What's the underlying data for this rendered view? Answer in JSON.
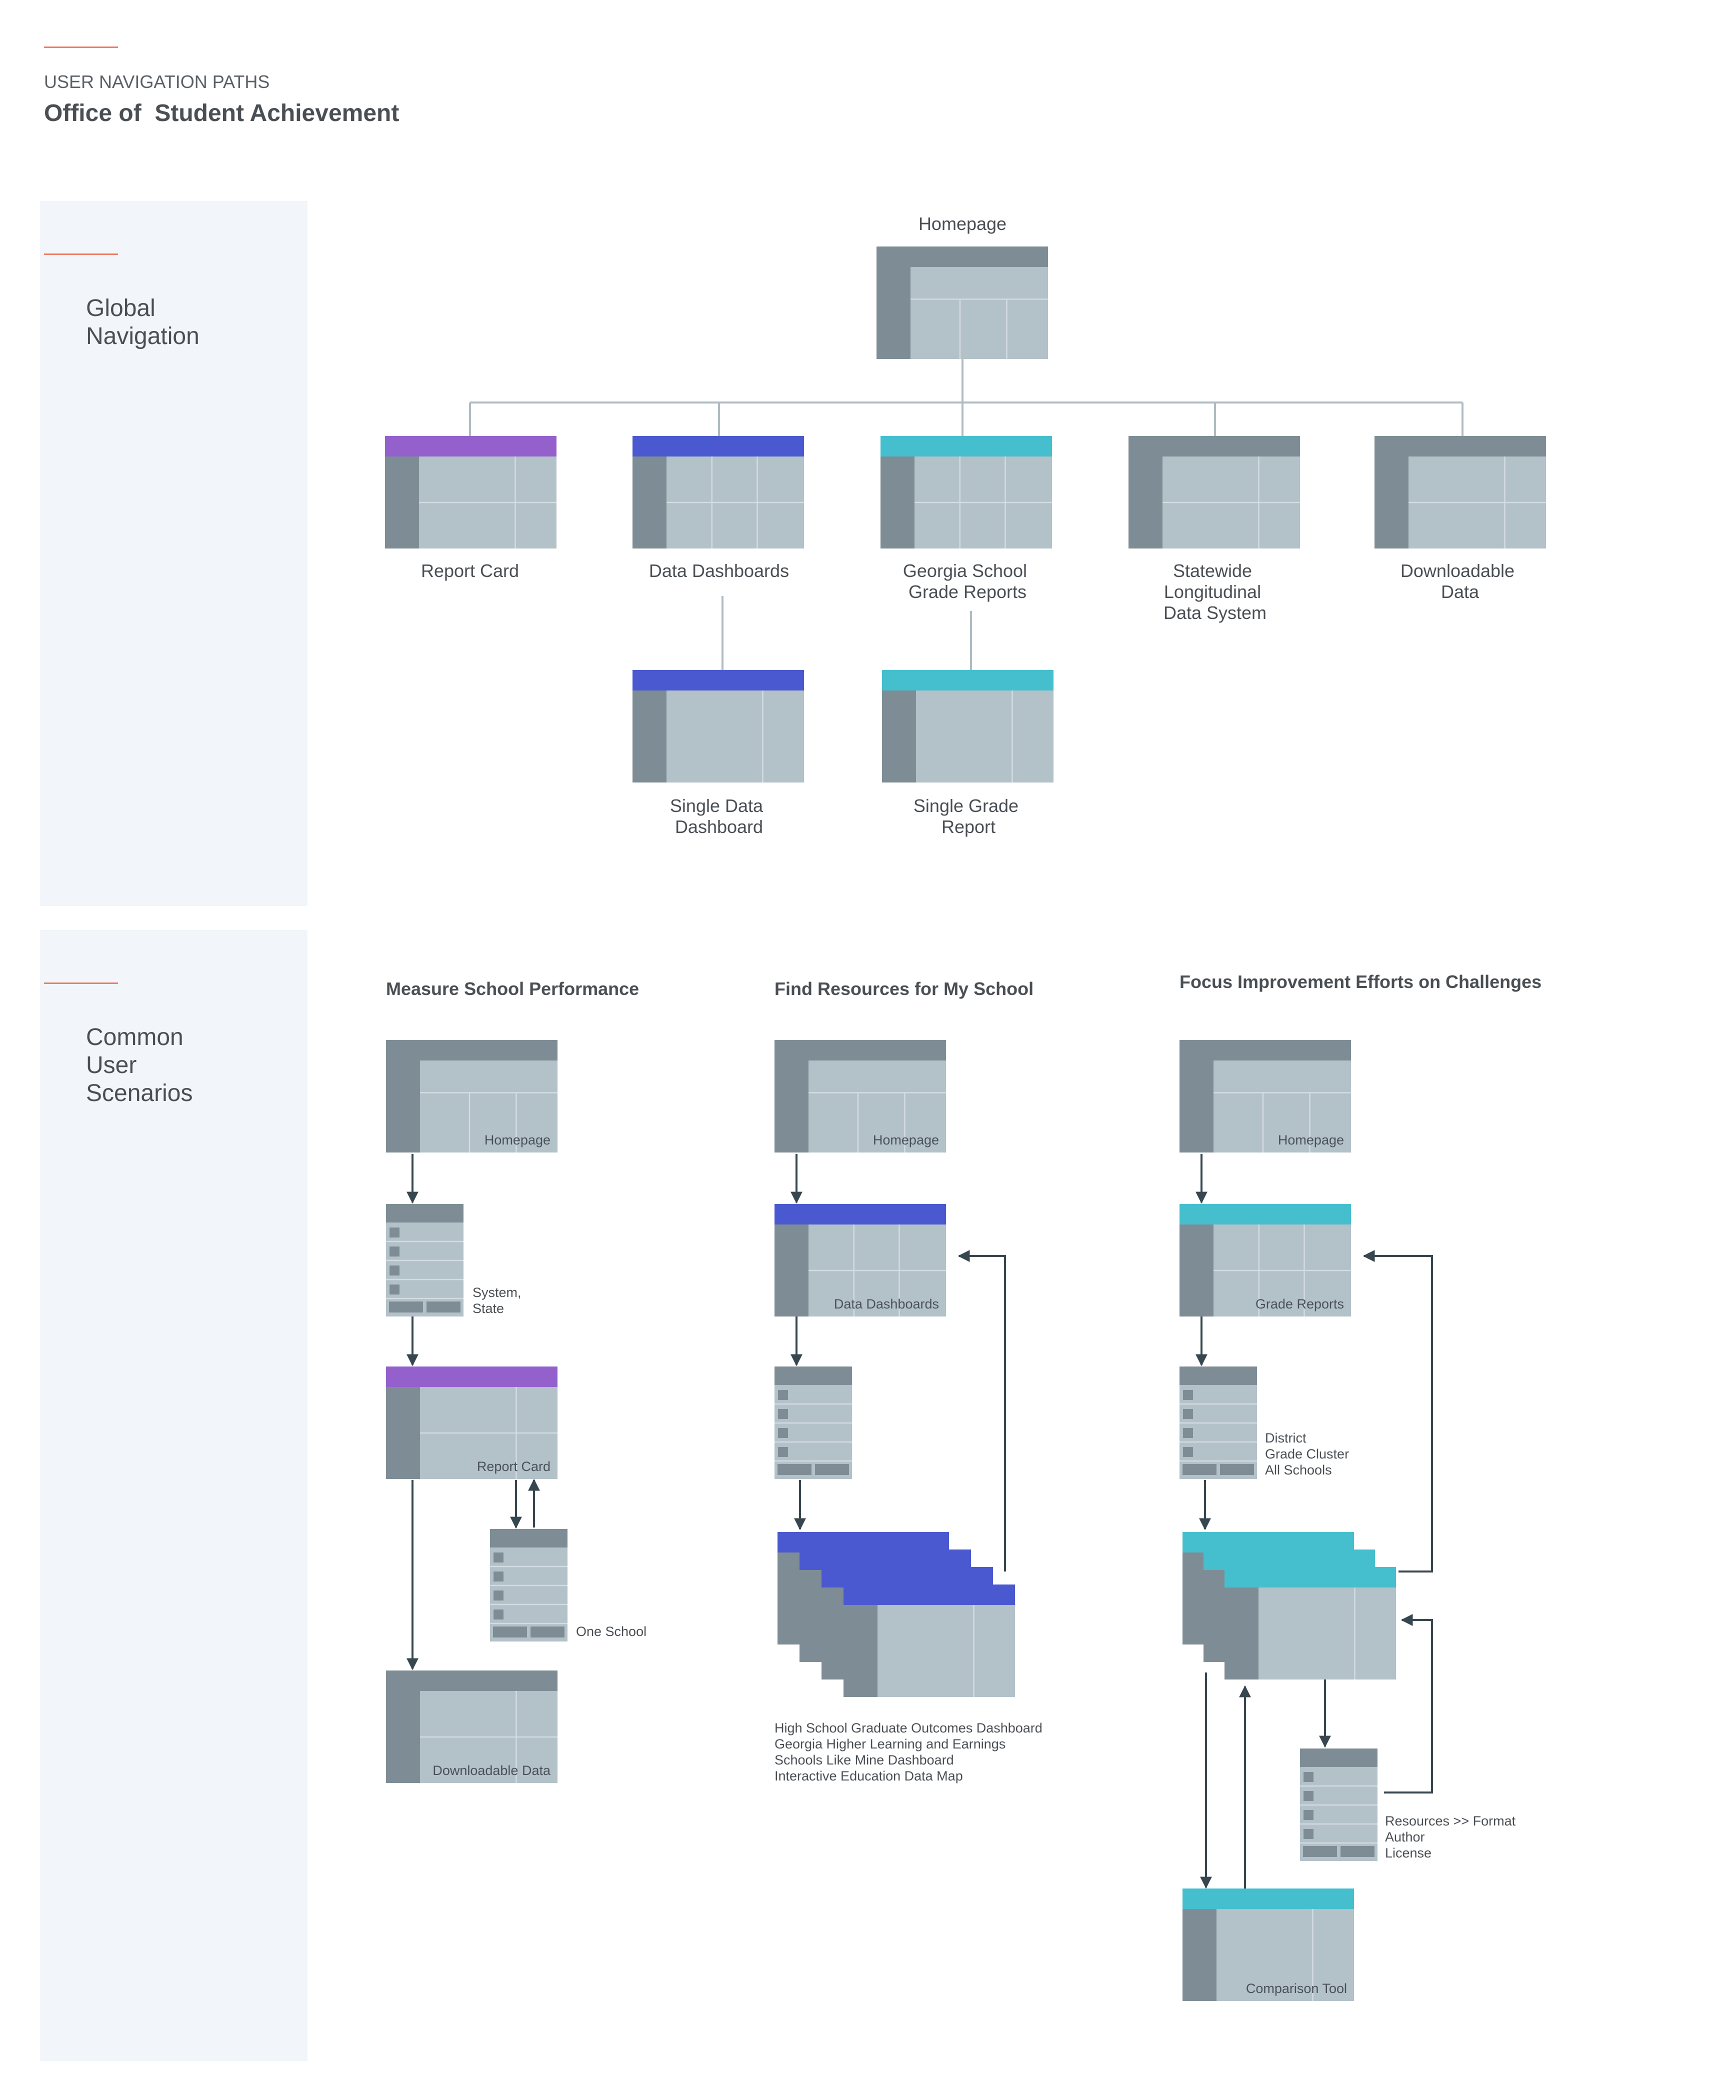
{
  "header": {
    "eyebrow": "USER NAVIGATION PATHS",
    "title": "Office of  Student Achievement"
  },
  "sections": {
    "global": {
      "label_lines": [
        "Global",
        "Navigation"
      ]
    },
    "scenarios": {
      "label_lines": [
        "Common",
        "User",
        "Scenarios"
      ]
    }
  },
  "global_nav": {
    "homepage": "Homepage",
    "children": [
      {
        "label_lines": [
          "Report Card"
        ],
        "accent": "#9460cc"
      },
      {
        "label_lines": [
          "Data Dashboards"
        ],
        "accent": "#4a59cf"
      },
      {
        "label_lines": [
          "Georgia School",
          "Grade Reports"
        ],
        "accent": "#45bfcd"
      },
      {
        "label_lines": [
          "Statewide",
          "Longitudinal",
          "Data System"
        ],
        "accent": "#7e8d95"
      },
      {
        "label_lines": [
          "Downloadable",
          "Data"
        ],
        "accent": "#7e8d95"
      }
    ],
    "grandchildren": [
      {
        "label_lines": [
          "Single Data",
          "Dashboard"
        ],
        "accent": "#4a59cf"
      },
      {
        "label_lines": [
          "Single Grade",
          "Report"
        ],
        "accent": "#45bfcd"
      }
    ]
  },
  "scenarios": [
    {
      "title": "Measure School Performance",
      "homepage": "Homepage",
      "filter_labels": [
        "System,",
        "State"
      ],
      "page": "Report Card",
      "sub_filter": [
        "One School"
      ],
      "end": "Downloadable Data"
    },
    {
      "title": "Find Resources for My School",
      "homepage": "Homepage",
      "page": "Data Dashboards",
      "dashboards": [
        "High School Graduate Outcomes Dashboard",
        "Georgia Higher Learning and Earnings",
        "Schools Like Mine Dashboard",
        "Interactive Education Data Map"
      ]
    },
    {
      "title": "Focus Improvement Efforts on Challenges",
      "homepage": "Homepage",
      "page": "Grade Reports",
      "filter_labels": [
        "District",
        "Grade Cluster",
        "All Schools"
      ],
      "resources": [
        "Resources >> Format",
        "Author",
        "License"
      ],
      "end": "Comparison Tool"
    }
  ],
  "colors": {
    "frame_dark": "#7e8d95",
    "frame_light": "#b3c1c8",
    "connector": "#aebbc3",
    "arrow": "#37474f",
    "panel_bg": "#f2f5f9",
    "accent_rule": "#ec7b61",
    "purple": "#9460cc",
    "blue": "#4a59cf",
    "teal": "#45bfcd"
  }
}
